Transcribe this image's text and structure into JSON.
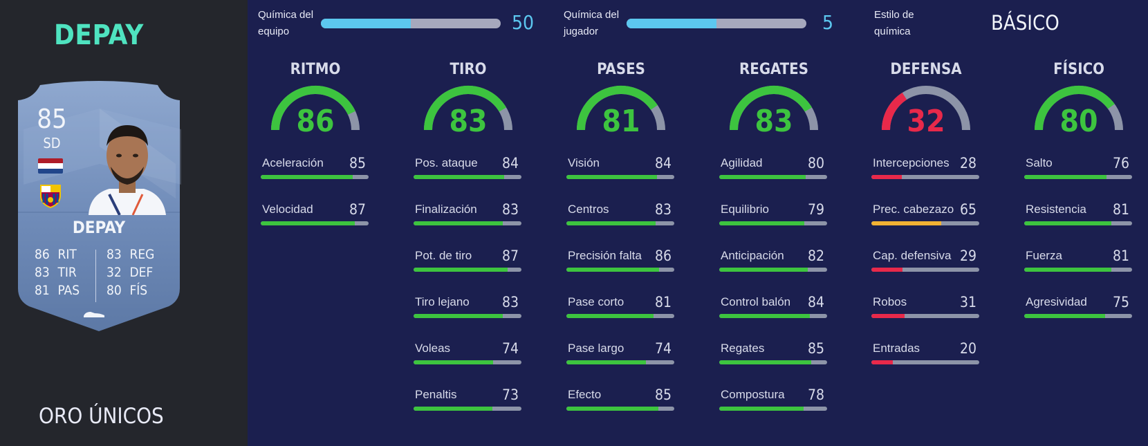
{
  "player": {
    "heading": "DEPAY",
    "card_type": "ORO ÚNICOS"
  },
  "card": {
    "rating": "85",
    "position": "SD",
    "name": "DEPAY",
    "flag_colors": [
      "#ae1c28",
      "#ffffff",
      "#21468b"
    ],
    "club_badge_icon": "barcelona-crest-icon",
    "boot_icon": "boot-icon",
    "stats": [
      {
        "value": "86",
        "label": "RIT"
      },
      {
        "value": "83",
        "label": "TIR"
      },
      {
        "value": "81",
        "label": "PAS"
      },
      {
        "value": "83",
        "label": "REG"
      },
      {
        "value": "32",
        "label": "DEF"
      },
      {
        "value": "80",
        "label": "FÍS"
      }
    ]
  },
  "chemistry": {
    "team": {
      "label_line1": "Química del",
      "label_line2": "equipo",
      "value": "50",
      "fill": 0.5
    },
    "player": {
      "label_line1": "Química del",
      "label_line2": "jugador",
      "value": "5",
      "fill": 0.5
    },
    "style": {
      "label_line1": "Estilo de",
      "label_line2": "química",
      "value": "BÁSICO"
    }
  },
  "colors": {
    "green": "#3dc43f",
    "red": "#e8294a",
    "orange": "#f2b233",
    "track": "#8d94a8",
    "chem_blue": "#5cc7ef",
    "heading_teal": "#4fe3c0"
  },
  "categories": [
    {
      "title": "RITMO",
      "value": "86",
      "color": "#3dc43f",
      "subs": [
        {
          "label": "Aceleración",
          "value": "85",
          "color": "#3dc43f"
        },
        {
          "label": "Velocidad",
          "value": "87",
          "color": "#3dc43f"
        }
      ]
    },
    {
      "title": "TIRO",
      "value": "83",
      "color": "#3dc43f",
      "subs": [
        {
          "label": "Pos. ataque",
          "value": "84",
          "color": "#3dc43f"
        },
        {
          "label": "Finalización",
          "value": "83",
          "color": "#3dc43f"
        },
        {
          "label": "Pot. de tiro",
          "value": "87",
          "color": "#3dc43f"
        },
        {
          "label": "Tiro lejano",
          "value": "83",
          "color": "#3dc43f"
        },
        {
          "label": "Voleas",
          "value": "74",
          "color": "#3dc43f"
        },
        {
          "label": "Penaltis",
          "value": "73",
          "color": "#3dc43f"
        }
      ]
    },
    {
      "title": "PASES",
      "value": "81",
      "color": "#3dc43f",
      "subs": [
        {
          "label": "Visión",
          "value": "84",
          "color": "#3dc43f"
        },
        {
          "label": "Centros",
          "value": "83",
          "color": "#3dc43f"
        },
        {
          "label": "Precisión falta",
          "value": "86",
          "color": "#3dc43f"
        },
        {
          "label": "Pase corto",
          "value": "81",
          "color": "#3dc43f"
        },
        {
          "label": "Pase largo",
          "value": "74",
          "color": "#3dc43f"
        },
        {
          "label": "Efecto",
          "value": "85",
          "color": "#3dc43f"
        }
      ]
    },
    {
      "title": "REGATES",
      "value": "83",
      "color": "#3dc43f",
      "subs": [
        {
          "label": "Agilidad",
          "value": "80",
          "color": "#3dc43f"
        },
        {
          "label": "Equilibrio",
          "value": "79",
          "color": "#3dc43f"
        },
        {
          "label": "Anticipación",
          "value": "82",
          "color": "#3dc43f"
        },
        {
          "label": "Control balón",
          "value": "84",
          "color": "#3dc43f"
        },
        {
          "label": "Regates",
          "value": "85",
          "color": "#3dc43f"
        },
        {
          "label": "Compostura",
          "value": "78",
          "color": "#3dc43f"
        }
      ]
    },
    {
      "title": "DEFENSA",
      "value": "32",
      "color": "#e8294a",
      "subs": [
        {
          "label": "Intercepciones",
          "value": "28",
          "color": "#e8294a"
        },
        {
          "label": "Prec. cabezazo",
          "value": "65",
          "color": "#f2b233"
        },
        {
          "label": "Cap. defensiva",
          "value": "29",
          "color": "#e8294a"
        },
        {
          "label": "Robos",
          "value": "31",
          "color": "#e8294a"
        },
        {
          "label": "Entradas",
          "value": "20",
          "color": "#e8294a"
        }
      ]
    },
    {
      "title": "FÍSICO",
      "value": "80",
      "color": "#3dc43f",
      "subs": [
        {
          "label": "Salto",
          "value": "76",
          "color": "#3dc43f"
        },
        {
          "label": "Resistencia",
          "value": "81",
          "color": "#3dc43f"
        },
        {
          "label": "Fuerza",
          "value": "81",
          "color": "#3dc43f"
        },
        {
          "label": "Agresividad",
          "value": "75",
          "color": "#3dc43f"
        }
      ]
    }
  ]
}
